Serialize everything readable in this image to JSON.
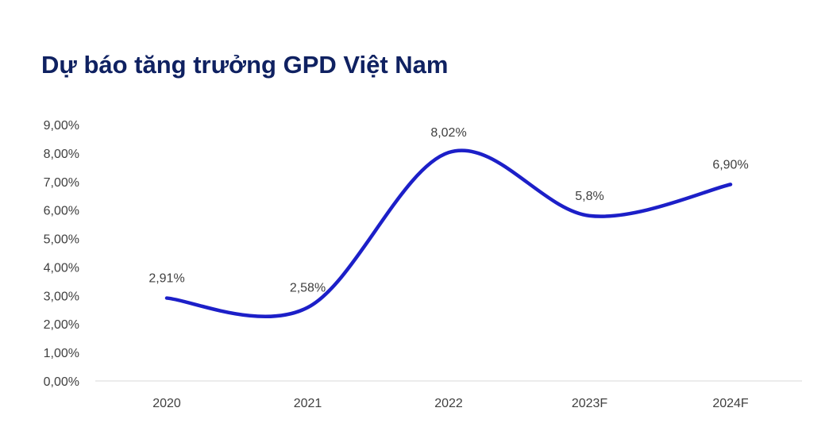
{
  "chart_data": {
    "type": "line",
    "title": "Dự báo tăng trưởng GPD Việt Nam",
    "categories": [
      "2020",
      "2021",
      "2022",
      "2023F",
      "2024F"
    ],
    "values": [
      2.91,
      2.58,
      8.02,
      5.8,
      6.9
    ],
    "data_labels": [
      "2,91%",
      "2,58%",
      "8,02%",
      "5,8%",
      "6,90%"
    ],
    "y_ticks": [
      "0,00%",
      "1,00%",
      "2,00%",
      "3,00%",
      "4,00%",
      "5,00%",
      "6,00%",
      "7,00%",
      "8,00%",
      "9,00%"
    ],
    "ylim": [
      0,
      9
    ],
    "xlabel": "",
    "ylabel": "",
    "smoothed": true,
    "grid": false,
    "line_color": "#1c1fc8",
    "title_color": "#0f2161"
  }
}
